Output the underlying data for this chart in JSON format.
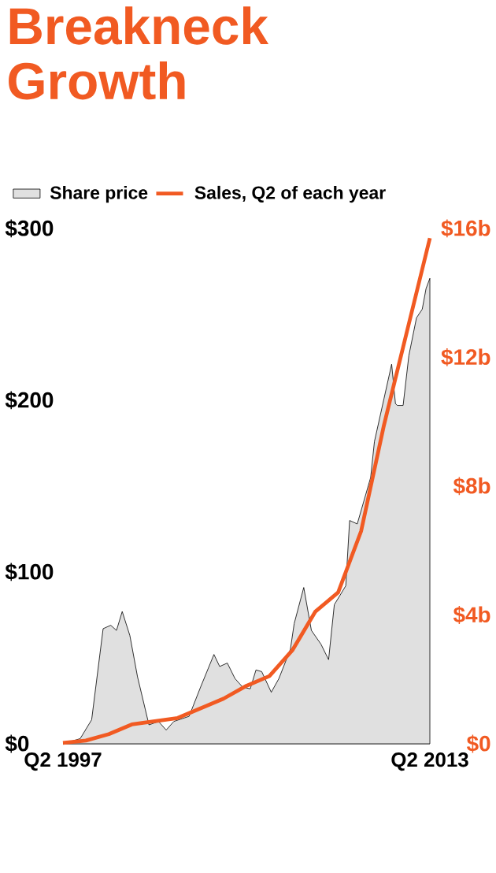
{
  "chart_data": {
    "type": "area",
    "title": "Breakneck Growth",
    "legend": "top left",
    "xlim": [
      "1997-05",
      "2013-05"
    ],
    "xticks": [
      {
        "value": "1997-05",
        "label": "Q2 1997"
      },
      {
        "value": "2013-05",
        "label": "Q2 2013"
      }
    ],
    "ylim": [
      0,
      300
    ],
    "yticks": [
      {
        "value": 0,
        "label": "$0"
      },
      {
        "value": 100,
        "label": "$100"
      },
      {
        "value": 200,
        "label": "$200"
      },
      {
        "value": 300,
        "label": "$300"
      }
    ],
    "y2lim": [
      0,
      16
    ],
    "y2ticks": [
      {
        "value": 0,
        "label": "$0"
      },
      {
        "value": 4,
        "label": "$4b"
      },
      {
        "value": 8,
        "label": "$8b"
      },
      {
        "value": 12,
        "label": "$12b"
      },
      {
        "value": 16,
        "label": "$16b"
      }
    ],
    "series": [
      {
        "name": "Share price",
        "color": "#000000",
        "x": [
          "1997-05",
          "1998-02",
          "1998-08",
          "1999-02",
          "1999-06",
          "1999-09",
          "1999-12",
          "2000-04",
          "2000-08",
          "2001-02",
          "2001-07",
          "2001-11",
          "2002-03",
          "2002-11",
          "2003-05",
          "2003-12",
          "2004-03",
          "2004-07",
          "2004-11",
          "2005-03",
          "2005-07",
          "2005-10",
          "2006-01",
          "2006-06",
          "2006-10",
          "2007-04",
          "2007-06",
          "2007-11",
          "2008-03",
          "2008-08",
          "2008-12",
          "2009-03",
          "2009-09",
          "2009-11",
          "2010-03",
          "2010-10",
          "2010-12",
          "2011-05",
          "2011-09",
          "2011-11",
          "2011-12",
          "2012-03",
          "2012-06",
          "2012-10",
          "2013-01",
          "2013-03",
          "2013-05"
        ],
        "values": [
          0,
          3,
          14,
          67,
          69,
          66,
          77,
          63,
          39,
          11,
          13,
          8,
          13,
          16,
          33,
          52,
          45,
          47,
          38,
          33,
          32,
          43,
          42,
          30,
          38,
          55,
          70,
          91,
          66,
          58,
          49,
          81,
          92,
          130,
          128,
          155,
          176,
          201,
          221,
          198,
          197,
          197,
          226,
          248,
          253,
          265,
          271
        ]
      },
      {
        "name": "Sales, Q2 of each year",
        "type": "line",
        "axis": "y2",
        "color": "#f15a22",
        "x": [
          "1997-05",
          "1998-05",
          "1999-05",
          "2000-05",
          "2001-05",
          "2002-05",
          "2003-05",
          "2004-05",
          "2005-05",
          "2006-05",
          "2007-05",
          "2008-05",
          "2009-05",
          "2010-05",
          "2011-05",
          "2012-05",
          "2013-05"
        ],
        "values": [
          0.03,
          0.1,
          0.3,
          0.6,
          0.7,
          0.8,
          1.1,
          1.4,
          1.8,
          2.1,
          2.9,
          4.1,
          4.7,
          6.6,
          9.9,
          12.8,
          15.7
        ]
      }
    ]
  }
}
